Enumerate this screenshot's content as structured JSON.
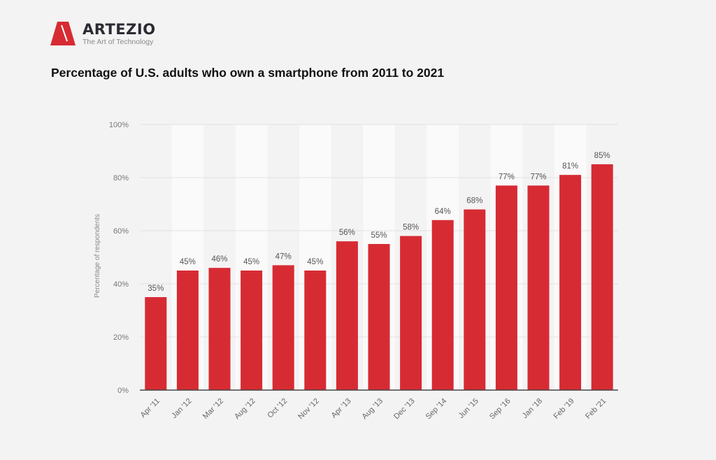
{
  "brand": {
    "name": "ARTEZIO",
    "tagline": "The Art of Technology",
    "logo_icon": "artezio-triangle-logo",
    "accent_color": "#d72b33"
  },
  "chart_data": {
    "type": "bar",
    "title": "Percentage of U.S. adults who own a smartphone from 2011 to 2021",
    "xlabel": "",
    "ylabel": "Percentage of respondents",
    "ylim": [
      0,
      100
    ],
    "yticks": [
      0,
      20,
      40,
      60,
      80,
      100
    ],
    "ytick_labels": [
      "0%",
      "20%",
      "40%",
      "60%",
      "80%",
      "100%"
    ],
    "grid": true,
    "legend": "none",
    "bar_color": "#d72b33",
    "categories": [
      "Apr '11",
      "Jan '12",
      "Mar '12",
      "Aug '12",
      "Oct '12",
      "Nov '12",
      "Apr '13",
      "Aug '13",
      "Dec '13",
      "Sep '14",
      "Jun '15",
      "Sep '16",
      "Jan '18",
      "Feb '19",
      "Feb '21"
    ],
    "values": [
      35,
      45,
      46,
      45,
      47,
      45,
      56,
      55,
      58,
      64,
      68,
      77,
      77,
      81,
      85
    ],
    "data_labels": [
      "35%",
      "45%",
      "46%",
      "45%",
      "47%",
      "45%",
      "56%",
      "55%",
      "58%",
      "64%",
      "68%",
      "77%",
      "77%",
      "81%",
      "85%"
    ]
  }
}
